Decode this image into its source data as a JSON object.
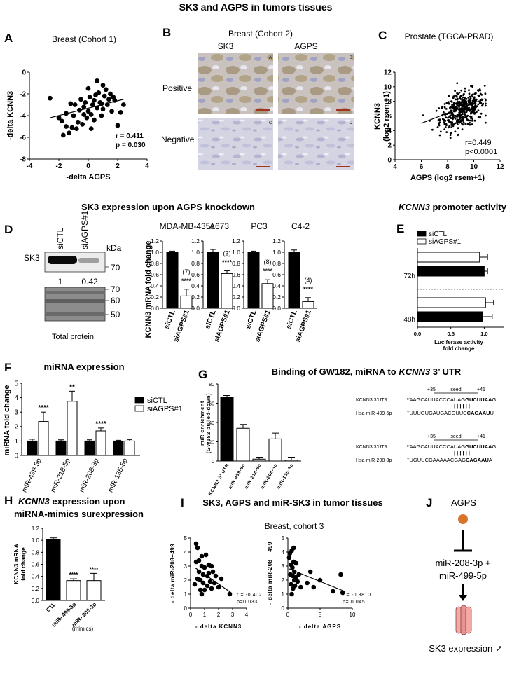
{
  "figure": {
    "title_top": "SK3 and AGPS in tumors tissues",
    "title_mid": "SK3 expression upon AGPS knockdown",
    "kcnn3_word": "KCNN3",
    "promoter_suffix": " promoter activity"
  },
  "panelA": {
    "letter": "A",
    "chart_data": {
      "type": "scatter",
      "title": "Breast (Cohort 1)",
      "xlabel": "-delta AGPS",
      "ylabel": "-delta KCNN3",
      "xlim": [
        -4,
        4
      ],
      "ylim": [
        -8,
        0
      ],
      "xticks": [
        "-4",
        "-2",
        "0",
        "2",
        "4"
      ],
      "yticks": [
        "-8",
        "-6",
        "-4",
        "-2",
        "0"
      ],
      "x": [
        -2.6,
        -2.0,
        -1.8,
        -1.5,
        -1.5,
        -1.3,
        -1.2,
        -1.0,
        -0.9,
        -0.8,
        -0.7,
        -0.6,
        -0.5,
        -0.4,
        -0.3,
        -0.2,
        -0.1,
        0.0,
        0.0,
        0.1,
        0.2,
        0.3,
        0.4,
        0.4,
        0.5,
        0.6,
        0.7,
        0.8,
        0.9,
        1.0,
        1.1,
        1.2,
        1.3,
        1.4,
        1.5,
        1.6,
        1.7,
        1.8,
        2.0,
        2.2,
        2.4,
        -1.7,
        -1.1,
        0.2,
        0.6,
        1.0,
        -0.3,
        0.9
      ],
      "y": [
        -2.4,
        -4.2,
        -4.5,
        -5.0,
        -3.8,
        -5.6,
        -2.9,
        -4.0,
        -3.0,
        -5.2,
        -4.6,
        -3.5,
        -2.5,
        -4.8,
        -3.2,
        -2.8,
        -4.2,
        -3.6,
        -1.5,
        -2.3,
        -3.9,
        -3.0,
        -2.6,
        -4.4,
        -2.1,
        -3.3,
        -1.9,
        -2.8,
        -4.0,
        -3.4,
        -2.2,
        -1.6,
        -3.0,
        -2.5,
        -2.0,
        -3.6,
        -2.3,
        -2.6,
        -4.9,
        -3.7,
        -3.0,
        -5.8,
        -5.1,
        -5.2,
        -0.8,
        -1.2,
        -3.9,
        -2.9
      ],
      "fit": {
        "x": [
          -2.6,
          2.4
        ],
        "y": [
          -4.2,
          -2.5
        ]
      },
      "stats": [
        "r = 0.411",
        "p = 0.030"
      ]
    }
  },
  "panelB": {
    "letter": "B",
    "title": "Breast (Cohort 2)",
    "col_labels": [
      "SK3",
      "AGPS"
    ],
    "row_labels": [
      "Positive",
      "Negative"
    ],
    "corner_letters": [
      "A",
      "B",
      "C",
      "D"
    ]
  },
  "panelC": {
    "letter": "C",
    "chart_data": {
      "type": "scatter",
      "title": "Prostate (TGCA-PRAD)",
      "xlabel": "AGPS (log2 rsem+1)",
      "ylabel_lines": [
        "KCNN3",
        "(log2 rsem+1)"
      ],
      "xlim": [
        4,
        12
      ],
      "ylim": [
        0,
        12
      ],
      "xticks": [
        "4",
        "6",
        "8",
        "10",
        "12"
      ],
      "yticks": [
        "0",
        "2",
        "4",
        "6",
        "8",
        "10",
        "12"
      ],
      "n_points": 420,
      "cloud": {
        "x_mean": 9.1,
        "x_sd": 0.85,
        "y_mean": 6.8,
        "y_sd": 1.35,
        "r": 0.449
      },
      "fit": {
        "x": [
          6.0,
          10.9
        ],
        "y": [
          5.0,
          8.4
        ]
      },
      "stats": [
        "r=0.449",
        "p<0.0001"
      ]
    }
  },
  "panelD": {
    "letter": "D",
    "blot_lanes": [
      "siCTL",
      "siAGPS#1"
    ],
    "blot_row_label": "SK3",
    "kda_label": "kDa",
    "upper_markers": [
      "70"
    ],
    "lower_markers": [
      "70",
      "60",
      "50"
    ],
    "quant": [
      "1",
      "0.42"
    ],
    "total_label": "Total protein",
    "ylabel": "KCNN3 mRNA fold change",
    "chart_data": [
      {
        "type": "bar",
        "title": "MDA-MB-435s",
        "categories": [
          "siCTL",
          "siAGPS#1"
        ],
        "values": [
          1.0,
          0.22
        ],
        "errors": [
          0.02,
          0.12
        ],
        "ylim": [
          0,
          1.2
        ],
        "annotation": [
          "(7)",
          "****"
        ]
      },
      {
        "type": "bar",
        "title": "A673",
        "categories": [
          "siCTL",
          "siAGPS#1"
        ],
        "values": [
          1.0,
          0.62
        ],
        "errors": [
          0.05,
          0.05
        ],
        "ylim": [
          0,
          1.2
        ],
        "annotation": [
          "(3)",
          "****"
        ]
      },
      {
        "type": "bar",
        "title": "PC3",
        "categories": [
          "siCTL",
          "siAGPS#1"
        ],
        "values": [
          1.0,
          0.44
        ],
        "errors": [
          0.02,
          0.07
        ],
        "ylim": [
          0,
          1.2
        ],
        "annotation": [
          "(8)",
          "****"
        ]
      },
      {
        "type": "bar",
        "title": "C4-2",
        "categories": [
          "siCTL",
          "siAGPS#1"
        ],
        "values": [
          1.0,
          0.12
        ],
        "errors": [
          0.04,
          0.07
        ],
        "ylim": [
          0,
          1.2
        ],
        "annotation": [
          "(4)",
          "****"
        ]
      }
    ]
  },
  "panelE": {
    "letter": "E",
    "chart_data": {
      "type": "bar",
      "orientation": "horizontal",
      "groups": [
        "72h",
        "48h"
      ],
      "series": [
        {
          "name": "siCTL",
          "values": [
            1.0,
            0.97
          ],
          "errors": [
            0.05,
            0.15
          ],
          "color": "#000000"
        },
        {
          "name": "siAGPS#1",
          "values": [
            0.93,
            1.02
          ],
          "errors": [
            0.12,
            0.12
          ],
          "color": "#ffffff"
        }
      ],
      "xlim": [
        0,
        1.3
      ],
      "xticks": [
        "0.0",
        "0.5",
        "1.0"
      ],
      "xlabel": "Luciferase activity fold change"
    }
  },
  "panelF": {
    "letter": "F",
    "title": "miRNA expression",
    "chart_data": {
      "type": "bar",
      "categories": [
        "miR-499-5p",
        "miR-218-5p",
        "miR-208-3p",
        "miR-135-5p"
      ],
      "series": [
        {
          "name": "siCTL",
          "values": [
            1.0,
            1.0,
            1.0,
            1.0
          ],
          "errors": [
            0.12,
            0.08,
            0.08,
            0.05
          ],
          "color": "#000000"
        },
        {
          "name": "siAGPS#1",
          "values": [
            2.35,
            3.75,
            1.7,
            1.0
          ],
          "errors": [
            0.65,
            0.7,
            0.2,
            0.1
          ],
          "color": "#ffffff"
        }
      ],
      "significance": [
        "****",
        "**",
        "****",
        ""
      ],
      "ylabel": "miRNA fold change",
      "ylim": [
        0,
        5
      ],
      "yticks": [
        "0",
        "1",
        "2",
        "3",
        "4",
        "5"
      ]
    }
  },
  "panelG": {
    "letter": "G",
    "title_prefix": "Binding of GW182, miRNA to ",
    "title_suffix": " 3’ UTR",
    "chart_data": {
      "type": "bar",
      "categories": [
        "KCNN3 3' UTR",
        "miR-499-5p",
        "miR-218-5p",
        "miR-208-3p",
        "miR-135-5p"
      ],
      "values": [
        66,
        34,
        2,
        23,
        1
      ],
      "errors": [
        2,
        4,
        2,
        6,
        3
      ],
      "ylabel_lines": [
        "miR enrichment",
        "(GW182 pulled-down)"
      ],
      "ylim": [
        0,
        80
      ],
      "yticks": [
        "0",
        "20",
        "40",
        "60",
        "80"
      ]
    },
    "align1": {
      "pos_left": "+35",
      "seed": "seed",
      "pos_right": "+41",
      "top_label": "KCNN3 3’UTR",
      "top_prime": "5’",
      "top_pre": "AAGCAUUACCCAUAG",
      "top_seed": "GUCUUAA",
      "top_post": "G",
      "bars": "| | | | | |",
      "bot_label": "Hsa-miR-499-5p",
      "bot_prime": "3’",
      "bot_pre": "UUUGUGAUGACGUUC",
      "bot_seed": "CAGAAU",
      "bot_post": "U"
    },
    "align2": {
      "pos_left": "+35",
      "seed": "seed",
      "pos_right": "+41",
      "top_label": "KCNN3 3’UTR",
      "top_prime": "5’",
      "top_pre": "AAGCAUUACCCAUAG",
      "top_seed": "GUCUUAA",
      "top_post": "G",
      "bars": "| | | | | |",
      "bot_label": "Hsa-miR-208-3p",
      "bot_prime": "3’",
      "bot_pre": "UGUUCGAAAAACGAG",
      "bot_seed": "CAGAAU",
      "bot_post": "A"
    }
  },
  "panelH": {
    "letter": "H",
    "title_suffix": " expression upon",
    "title_line2": "miRNA-mimics surexpression",
    "chart_data": {
      "type": "bar",
      "categories": [
        "CTL",
        "miR- 499-5p",
        "miR- 208-3p"
      ],
      "values": [
        1.01,
        0.33,
        0.33
      ],
      "errors": [
        0.03,
        0.03,
        0.12
      ],
      "significance": [
        "",
        "****",
        "****"
      ],
      "ylabel_lines": [
        "KCNN3 mRNA",
        "fold change"
      ],
      "ylim": [
        0,
        1.2
      ],
      "yticks": [
        "0.0",
        "0.2",
        "0.4",
        "0.6",
        "0.8",
        "1.0",
        "1.2"
      ],
      "footnote": "(mimics)"
    }
  },
  "panelI": {
    "letter": "I",
    "title": "SK3, AGPS and miR-SK3 in tumor tissues",
    "subtitle": "Breast, cohort 3",
    "chart_data": [
      {
        "type": "scatter",
        "xlabel": "- delta KCNN3",
        "ylabel": "- delta miR-208+499",
        "xlim": [
          0,
          4
        ],
        "ylim": [
          0,
          5
        ],
        "xticks": [
          "0",
          "1",
          "2",
          "3",
          "4"
        ],
        "yticks": [
          "0",
          "1",
          "2",
          "3",
          "4",
          "5"
        ],
        "x": [
          0.3,
          0.4,
          0.5,
          0.5,
          0.6,
          0.6,
          0.7,
          0.7,
          0.8,
          0.8,
          0.9,
          0.9,
          1.0,
          1.0,
          1.1,
          1.2,
          1.2,
          1.3,
          1.4,
          1.5,
          1.5,
          1.6,
          1.7,
          1.8,
          2.0,
          2.2,
          0.4,
          0.8,
          1.3,
          2.8
        ],
        "y": [
          1.7,
          3.3,
          2.1,
          4.3,
          2.6,
          3.4,
          1.3,
          2.0,
          3.0,
          3.7,
          2.4,
          1.8,
          2.9,
          1.3,
          3.8,
          2.3,
          1.6,
          2.5,
          1.9,
          3.0,
          1.4,
          2.6,
          1.8,
          2.3,
          1.5,
          2.1,
          4.6,
          1.0,
          3.1,
          1.0
        ],
        "fit": {
          "x": [
            0.3,
            2.9
          ],
          "y": [
            2.9,
            1.1
          ]
        },
        "stats": [
          "r = -0.402",
          "p=0.033"
        ]
      },
      {
        "type": "scatter",
        "xlabel": "- delta AGPS",
        "ylabel": "- delta miR-208 + 499",
        "xlim": [
          0,
          10
        ],
        "ylim": [
          0,
          5
        ],
        "xticks": [
          "0",
          "5",
          "10"
        ],
        "yticks": [
          "0",
          "1",
          "2",
          "3",
          "4",
          "5"
        ],
        "x": [
          0.2,
          0.3,
          0.4,
          0.5,
          0.5,
          0.6,
          0.7,
          0.8,
          0.8,
          0.9,
          1.0,
          1.0,
          1.1,
          1.2,
          1.3,
          1.5,
          1.7,
          2.0,
          3.0,
          3.5,
          4.0,
          5.0,
          7.0,
          8.5,
          8.2,
          0.6,
          0.9
        ],
        "y": [
          3.6,
          3.9,
          2.4,
          3.1,
          1.7,
          4.1,
          2.9,
          2.3,
          1.4,
          3.3,
          2.0,
          2.6,
          1.6,
          2.2,
          3.2,
          1.9,
          2.4,
          1.5,
          1.8,
          2.6,
          1.5,
          2.0,
          1.2,
          1.1,
          2.4,
          1.0,
          4.3
        ],
        "fit": {
          "x": [
            0.2,
            8.8
          ],
          "y": [
            2.8,
            1.2
          ]
        },
        "stats": [
          "r = -0.3810",
          "p= 0.045"
        ]
      }
    ]
  },
  "panelJ": {
    "letter": "J",
    "agps": "AGPS",
    "mirs": "miR-208-3p +",
    "mirs2": "miR-499-5p",
    "outcome": "SK3 expression ↗"
  }
}
